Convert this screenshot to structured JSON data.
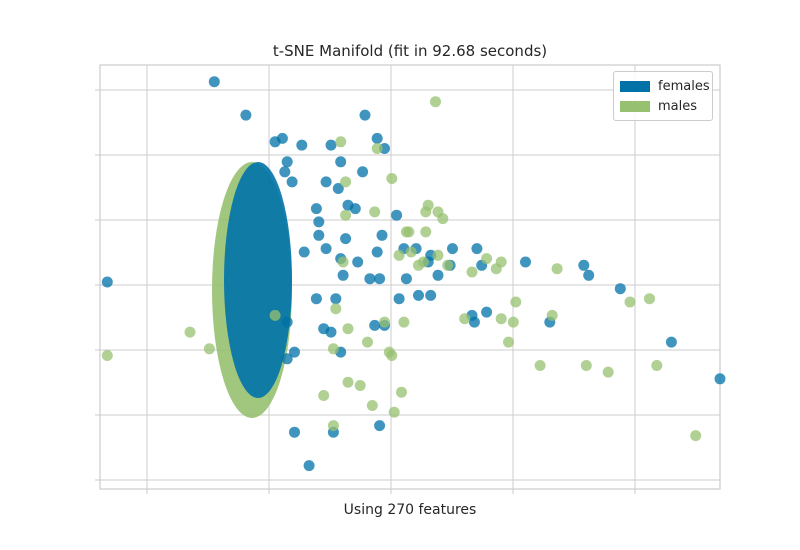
{
  "chart_data": {
    "type": "scatter",
    "title": "t-SNE Manifold (fit in 92.68 seconds)",
    "xlabel": "Using 270 features",
    "ylabel": "",
    "xlim": [
      -10.5,
      15.0
    ],
    "ylim": [
      -6.2,
      6.5
    ],
    "grid": true,
    "legend_position": "top-right",
    "series": [
      {
        "name": "females",
        "color": "#0072a8",
        "points": [
          [
            -5.8,
            6.0
          ],
          [
            -4.5,
            5.0
          ],
          [
            -3.0,
            4.3
          ],
          [
            -3.3,
            4.2
          ],
          [
            -2.2,
            4.1
          ],
          [
            -1.0,
            4.1
          ],
          [
            0.9,
            4.3
          ],
          [
            0.4,
            5.0
          ],
          [
            1.2,
            4.0
          ],
          [
            -2.8,
            3.6
          ],
          [
            -2.9,
            3.3
          ],
          [
            -2.6,
            3.0
          ],
          [
            -1.2,
            3.0
          ],
          [
            -1.6,
            2.2
          ],
          [
            -0.7,
            2.8
          ],
          [
            -0.6,
            3.6
          ],
          [
            -0.3,
            2.3
          ],
          [
            0.3,
            3.3
          ],
          [
            1.7,
            2.0
          ],
          [
            0.0,
            2.2
          ],
          [
            1.1,
            1.4
          ],
          [
            2.0,
            1.0
          ],
          [
            2.5,
            1.0
          ],
          [
            3.1,
            0.8
          ],
          [
            3.1,
            -0.4
          ],
          [
            3.4,
            0.2
          ],
          [
            3.0,
            0.6
          ],
          [
            2.1,
            0.1
          ],
          [
            1.8,
            -0.5
          ],
          [
            2.6,
            -0.4
          ],
          [
            1.2,
            -1.3
          ],
          [
            0.8,
            -1.3
          ],
          [
            0.1,
            0.6
          ],
          [
            0.6,
            0.1
          ],
          [
            1.0,
            0.1
          ],
          [
            -0.6,
            0.7
          ],
          [
            -0.4,
            1.3
          ],
          [
            -1.2,
            1.0
          ],
          [
            -1.5,
            1.4
          ],
          [
            0.9,
            0.9
          ],
          [
            -0.8,
            -0.5
          ],
          [
            -0.5,
            0.2
          ],
          [
            -1.0,
            -1.5
          ],
          [
            -1.3,
            -1.4
          ],
          [
            -0.6,
            -2.1
          ],
          [
            -2.8,
            -1.2
          ],
          [
            -2.5,
            -2.1
          ],
          [
            -2.8,
            -2.3
          ],
          [
            -1.6,
            -0.5
          ],
          [
            -2.1,
            0.9
          ],
          [
            -10.2,
            0.0
          ],
          [
            4.0,
            1.0
          ],
          [
            5.0,
            1.0
          ],
          [
            5.2,
            0.5
          ],
          [
            4.8,
            -1.0
          ],
          [
            4.9,
            -1.2
          ],
          [
            7.0,
            0.6
          ],
          [
            8.0,
            -1.2
          ],
          [
            9.4,
            0.5
          ],
          [
            9.6,
            0.2
          ],
          [
            10.9,
            -0.2
          ],
          [
            13.0,
            -1.8
          ],
          [
            15.0,
            -2.9
          ],
          [
            5.4,
            -0.9
          ],
          [
            -2.5,
            -4.5
          ],
          [
            -0.9,
            -4.5
          ],
          [
            1.0,
            -4.3
          ],
          [
            -1.9,
            -5.5
          ],
          [
            3.9,
            0.5
          ],
          [
            -1.5,
            1.8
          ]
        ]
      },
      {
        "name": "males",
        "color": "#97c070",
        "points": [
          [
            3.3,
            5.4
          ],
          [
            0.9,
            4.0
          ],
          [
            -0.6,
            4.2
          ],
          [
            -0.4,
            3.0
          ],
          [
            1.5,
            3.1
          ],
          [
            2.9,
            2.1
          ],
          [
            3.0,
            2.3
          ],
          [
            3.4,
            2.1
          ],
          [
            3.6,
            1.9
          ],
          [
            -0.4,
            2.0
          ],
          [
            0.8,
            2.1
          ],
          [
            2.1,
            1.5
          ],
          [
            2.2,
            1.5
          ],
          [
            2.9,
            1.5
          ],
          [
            2.3,
            0.9
          ],
          [
            1.8,
            0.8
          ],
          [
            2.6,
            0.5
          ],
          [
            2.8,
            0.6
          ],
          [
            5.8,
            0.4
          ],
          [
            6.0,
            0.6
          ],
          [
            3.4,
            0.8
          ],
          [
            3.8,
            0.5
          ],
          [
            4.8,
            0.3
          ],
          [
            5.4,
            0.7
          ],
          [
            6.0,
            -1.1
          ],
          [
            6.6,
            -0.6
          ],
          [
            8.3,
            0.4
          ],
          [
            8.1,
            -1.0
          ],
          [
            6.5,
            -1.2
          ],
          [
            6.3,
            -1.8
          ],
          [
            7.6,
            -2.5
          ],
          [
            9.5,
            -2.5
          ],
          [
            10.4,
            -2.7
          ],
          [
            12.4,
            -2.5
          ],
          [
            11.3,
            -0.6
          ],
          [
            12.1,
            -0.5
          ],
          [
            -10.2,
            -2.2
          ],
          [
            -6.8,
            -1.5
          ],
          [
            -6.0,
            -2.0
          ],
          [
            1.5,
            -2.2
          ],
          [
            -0.3,
            -3.0
          ],
          [
            0.2,
            -3.1
          ],
          [
            1.6,
            -3.9
          ],
          [
            1.9,
            -3.3
          ],
          [
            0.7,
            -3.7
          ],
          [
            -1.3,
            -3.4
          ],
          [
            -0.9,
            -4.3
          ],
          [
            -0.9,
            -2.0
          ],
          [
            1.4,
            -2.1
          ],
          [
            -0.3,
            -1.4
          ],
          [
            -0.8,
            -0.8
          ],
          [
            2.0,
            -1.2
          ],
          [
            4.5,
            -1.1
          ],
          [
            14.0,
            -4.6
          ],
          [
            -0.5,
            0.6
          ],
          [
            0.5,
            -1.8
          ],
          [
            1.2,
            -1.2
          ],
          [
            -3.3,
            -1.0
          ]
        ]
      }
    ]
  }
}
